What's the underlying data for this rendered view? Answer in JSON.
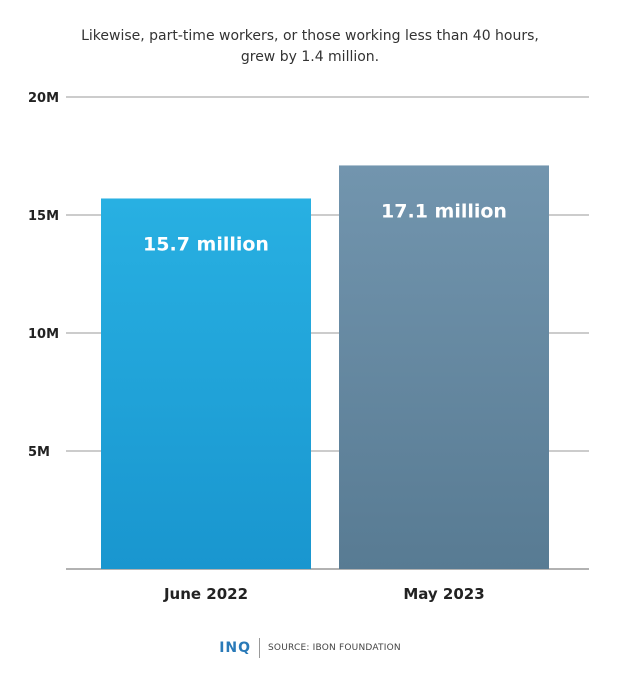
{
  "title_lines": [
    "Likewise, part-time workers, or those working less than 40 hours,",
    "grew by 1.4 million."
  ],
  "footer": {
    "logo": "INQ",
    "source": "SOURCE: IBON FOUNDATION"
  },
  "colors": {
    "bar_june": "#22aadf",
    "bar_may": "#6b90a8",
    "gridline": "#333333"
  },
  "chart_data": {
    "type": "bar",
    "categories": [
      "June 2022",
      "May 2023"
    ],
    "values": [
      15.7,
      17.1
    ],
    "value_labels": [
      "15.7 million",
      "17.1 million"
    ],
    "ylim": [
      0,
      20
    ],
    "yticks": [
      5,
      10,
      15,
      20
    ],
    "ytick_labels": [
      "5M",
      "10M",
      "15M",
      "20M"
    ],
    "grid": true,
    "xlabel": "",
    "ylabel": ""
  }
}
